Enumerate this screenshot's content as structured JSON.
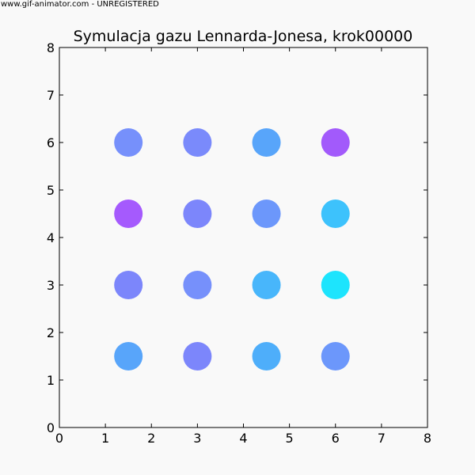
{
  "watermark": "www.gif-animator.com - UNREGISTERED",
  "chart_data": {
    "type": "scatter",
    "title": "Symulacja gazu Lennarda-Jonesa, krok00000",
    "xlabel": "",
    "ylabel": "",
    "xlim": [
      0,
      8
    ],
    "ylim": [
      0,
      8
    ],
    "xticks": [
      "0",
      "1",
      "2",
      "3",
      "4",
      "5",
      "6",
      "7",
      "8"
    ],
    "yticks": [
      "0",
      "1",
      "2",
      "3",
      "4",
      "5",
      "6",
      "7",
      "8"
    ],
    "grid": false,
    "points": [
      {
        "x": 1.5,
        "y": 6.0,
        "color": "#7690fb"
      },
      {
        "x": 3.0,
        "y": 6.0,
        "color": "#7a8afb"
      },
      {
        "x": 4.5,
        "y": 6.0,
        "color": "#58a5fa"
      },
      {
        "x": 6.0,
        "y": 6.0,
        "color": "#a25afb"
      },
      {
        "x": 1.5,
        "y": 4.5,
        "color": "#a55afd"
      },
      {
        "x": 3.0,
        "y": 4.5,
        "color": "#7c86fb"
      },
      {
        "x": 4.5,
        "y": 4.5,
        "color": "#6c97fb"
      },
      {
        "x": 6.0,
        "y": 4.5,
        "color": "#3dc2fc"
      },
      {
        "x": 1.5,
        "y": 3.0,
        "color": "#7c86fb"
      },
      {
        "x": 3.0,
        "y": 3.0,
        "color": "#7690fb"
      },
      {
        "x": 4.5,
        "y": 3.0,
        "color": "#48b6fb"
      },
      {
        "x": 6.0,
        "y": 3.0,
        "color": "#1de4fd"
      },
      {
        "x": 1.5,
        "y": 1.5,
        "color": "#58a5fa"
      },
      {
        "x": 3.0,
        "y": 1.5,
        "color": "#7c86fb"
      },
      {
        "x": 4.5,
        "y": 1.5,
        "color": "#4eaefa"
      },
      {
        "x": 6.0,
        "y": 1.5,
        "color": "#6c97fb"
      }
    ]
  }
}
